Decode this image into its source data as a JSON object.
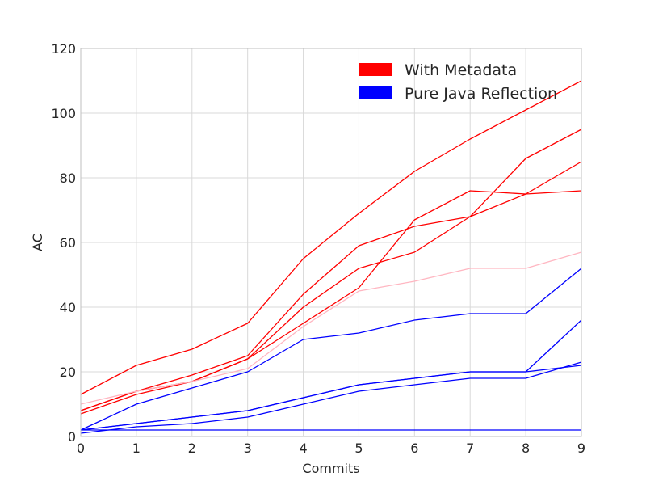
{
  "chart_data": {
    "type": "line",
    "title": "",
    "xlabel": "Commits",
    "ylabel": "AC",
    "xlim": [
      0,
      9
    ],
    "ylim": [
      0,
      120
    ],
    "xticks": [
      0,
      1,
      2,
      3,
      4,
      5,
      6,
      7,
      8,
      9
    ],
    "yticks": [
      0,
      20,
      40,
      60,
      80,
      100,
      120
    ],
    "grid": true,
    "legend_position": "top-right",
    "x": [
      0,
      1,
      2,
      3,
      4,
      5,
      6,
      7,
      8,
      9
    ],
    "legend": [
      {
        "label": "With Metadata",
        "color": "#ff0000"
      },
      {
        "label": "Pure Java Reflection",
        "color": "#0000ff"
      }
    ],
    "series": [
      {
        "group": "With Metadata",
        "color": "#ff0000",
        "values": [
          13,
          22,
          27,
          35,
          55,
          69,
          82,
          92,
          101,
          110
        ]
      },
      {
        "group": "With Metadata",
        "color": "#ff0000",
        "values": [
          8,
          14,
          19,
          25,
          44,
          59,
          65,
          68,
          86,
          95
        ]
      },
      {
        "group": "With Metadata",
        "color": "#ff0000",
        "values": [
          7,
          13,
          17,
          24,
          40,
          52,
          57,
          68,
          75,
          85
        ]
      },
      {
        "group": "With Metadata",
        "color": "#ff0000",
        "values": [
          8,
          14,
          17,
          24,
          35,
          46,
          67,
          76,
          75,
          76
        ]
      },
      {
        "group": "With Metadata",
        "color": "#ffb6c1",
        "values": [
          10,
          14,
          17,
          21,
          34,
          45,
          48,
          52,
          52,
          57
        ]
      },
      {
        "group": "Pure Java Reflection",
        "color": "#0000ff",
        "values": [
          2,
          10,
          15,
          20,
          30,
          32,
          36,
          38,
          38,
          52
        ]
      },
      {
        "group": "Pure Java Reflection",
        "color": "#0000ff",
        "values": [
          2,
          4,
          6,
          8,
          12,
          16,
          18,
          20,
          20,
          36
        ]
      },
      {
        "group": "Pure Java Reflection",
        "color": "#0000ff",
        "values": [
          2,
          4,
          6,
          8,
          12,
          16,
          18,
          20,
          20,
          22
        ]
      },
      {
        "group": "Pure Java Reflection",
        "color": "#0000ff",
        "values": [
          1,
          3,
          4,
          6,
          10,
          14,
          16,
          18,
          18,
          23
        ]
      },
      {
        "group": "Pure Java Reflection",
        "color": "#0000ff",
        "values": [
          2,
          2,
          2,
          2,
          2,
          2,
          2,
          2,
          2,
          2
        ]
      }
    ]
  }
}
